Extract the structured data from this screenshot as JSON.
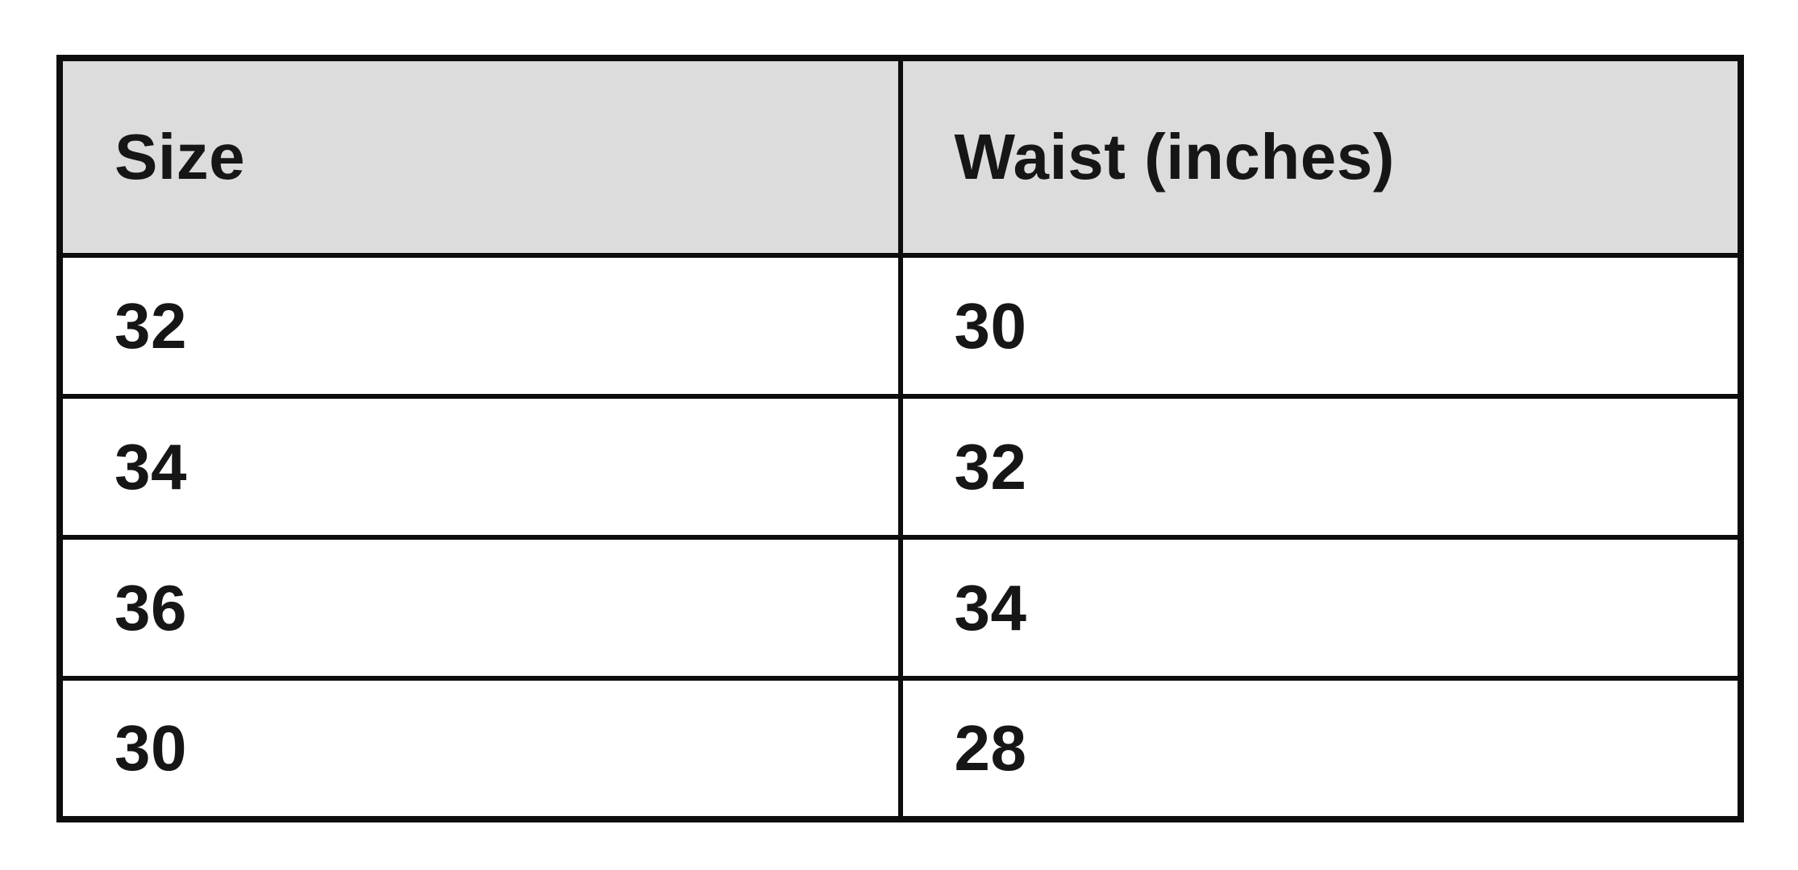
{
  "table": {
    "headers": [
      "Size",
      "Waist (inches)"
    ],
    "rows": [
      [
        "32",
        "30"
      ],
      [
        "34",
        "32"
      ],
      [
        "36",
        "34"
      ],
      [
        "30",
        "28"
      ]
    ]
  },
  "colors": {
    "page_background": "#ffffff",
    "header_background": "#dcdcdc",
    "border": "#0d0d0d",
    "text": "#161616"
  },
  "chart_data": {
    "type": "table",
    "columns": [
      "Size",
      "Waist (inches)"
    ],
    "rows": [
      [
        32,
        30
      ],
      [
        34,
        32
      ],
      [
        36,
        34
      ],
      [
        30,
        28
      ]
    ],
    "title": "",
    "layout_hints": {
      "header_shaded": true,
      "grid_on": true,
      "column_split": "50/50",
      "text_alignment": "left"
    }
  }
}
